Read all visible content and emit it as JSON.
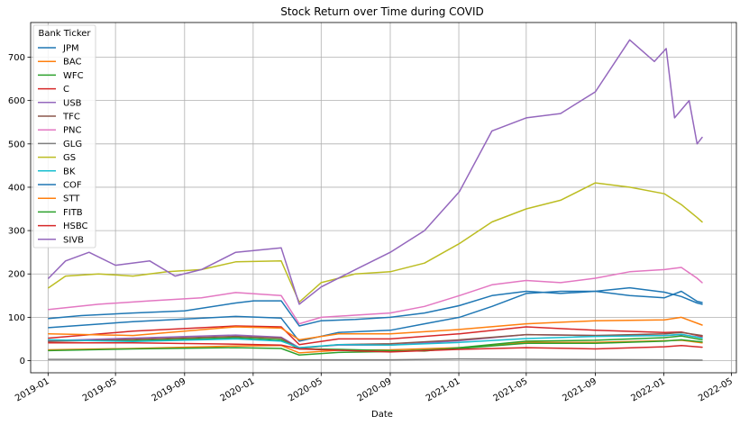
{
  "chart_data": {
    "type": "line",
    "title": "Stock Return over Time during COVID",
    "xlabel": "Date",
    "ylabel": "",
    "ylim": [
      -28,
      780
    ],
    "xlim": [
      "2018-12-01",
      "2022-05-10"
    ],
    "yticks": [
      0,
      100,
      200,
      300,
      400,
      500,
      600,
      700
    ],
    "xticks": [
      "2019-01",
      "2019-05",
      "2019-09",
      "2020-01",
      "2020-05",
      "2020-09",
      "2021-01",
      "2021-05",
      "2021-09",
      "2022-01",
      "2022-05"
    ],
    "grid": true,
    "legend": {
      "title": "Bank Ticker",
      "placement": "upper-left"
    },
    "series": [
      {
        "name": "JPM",
        "color": "#1f77b4",
        "points": [
          [
            "2019-01-02",
            97
          ],
          [
            "2019-03-01",
            104
          ],
          [
            "2019-06-01",
            110
          ],
          [
            "2019-09-01",
            115
          ],
          [
            "2019-12-01",
            133
          ],
          [
            "2020-01-02",
            138
          ],
          [
            "2020-02-20",
            138
          ],
          [
            "2020-03-23",
            80
          ],
          [
            "2020-05-01",
            92
          ],
          [
            "2020-07-01",
            95
          ],
          [
            "2020-09-01",
            100
          ],
          [
            "2020-11-01",
            110
          ],
          [
            "2021-01-02",
            127
          ],
          [
            "2021-03-01",
            150
          ],
          [
            "2021-05-01",
            160
          ],
          [
            "2021-07-01",
            155
          ],
          [
            "2021-09-01",
            160
          ],
          [
            "2021-11-01",
            168
          ],
          [
            "2022-01-02",
            158
          ],
          [
            "2022-02-01",
            148
          ],
          [
            "2022-03-01",
            133
          ],
          [
            "2022-03-10",
            130
          ]
        ]
      },
      {
        "name": "BAC",
        "color": "#ff7f0e",
        "points": [
          [
            "2019-01-02",
            25
          ],
          [
            "2019-06-01",
            28
          ],
          [
            "2019-12-01",
            34
          ],
          [
            "2020-02-20",
            35
          ],
          [
            "2020-03-23",
            18
          ],
          [
            "2020-06-01",
            24
          ],
          [
            "2020-09-01",
            25
          ],
          [
            "2021-01-02",
            30
          ],
          [
            "2021-05-01",
            42
          ],
          [
            "2021-09-01",
            42
          ],
          [
            "2022-01-02",
            46
          ],
          [
            "2022-02-01",
            47
          ],
          [
            "2022-03-10",
            41
          ]
        ]
      },
      {
        "name": "WFC",
        "color": "#2ca02c",
        "points": [
          [
            "2019-01-02",
            47
          ],
          [
            "2019-06-01",
            46
          ],
          [
            "2019-12-01",
            53
          ],
          [
            "2020-02-20",
            48
          ],
          [
            "2020-03-23",
            27
          ],
          [
            "2020-06-01",
            26
          ],
          [
            "2020-09-01",
            23
          ],
          [
            "2020-11-01",
            22
          ],
          [
            "2021-01-02",
            30
          ],
          [
            "2021-05-01",
            45
          ],
          [
            "2021-09-01",
            47
          ],
          [
            "2022-01-02",
            53
          ],
          [
            "2022-02-01",
            57
          ],
          [
            "2022-03-10",
            48
          ]
        ]
      },
      {
        "name": "C",
        "color": "#d62728",
        "points": [
          [
            "2019-01-02",
            52
          ],
          [
            "2019-06-01",
            68
          ],
          [
            "2019-12-01",
            80
          ],
          [
            "2020-02-20",
            78
          ],
          [
            "2020-03-23",
            37
          ],
          [
            "2020-06-01",
            50
          ],
          [
            "2020-09-01",
            50
          ],
          [
            "2021-01-02",
            62
          ],
          [
            "2021-05-01",
            78
          ],
          [
            "2021-09-01",
            70
          ],
          [
            "2022-01-02",
            65
          ],
          [
            "2022-02-01",
            66
          ],
          [
            "2022-03-10",
            56
          ]
        ]
      },
      {
        "name": "USB",
        "color": "#9467bd",
        "points": [
          [
            "2019-01-02",
            46
          ],
          [
            "2019-06-01",
            52
          ],
          [
            "2019-12-01",
            59
          ],
          [
            "2020-02-20",
            54
          ],
          [
            "2020-03-23",
            30
          ],
          [
            "2020-06-01",
            36
          ],
          [
            "2020-09-01",
            36
          ],
          [
            "2021-01-02",
            46
          ],
          [
            "2021-05-01",
            60
          ],
          [
            "2021-09-01",
            58
          ],
          [
            "2022-01-02",
            58
          ],
          [
            "2022-02-01",
            60
          ],
          [
            "2022-03-10",
            53
          ]
        ]
      },
      {
        "name": "TFC",
        "color": "#8c564b",
        "points": [
          [
            "2019-01-02",
            44
          ],
          [
            "2019-06-01",
            49
          ],
          [
            "2019-12-01",
            56
          ],
          [
            "2020-02-20",
            52
          ],
          [
            "2020-03-23",
            28
          ],
          [
            "2020-06-01",
            37
          ],
          [
            "2020-09-01",
            39
          ],
          [
            "2021-01-02",
            48
          ],
          [
            "2021-05-01",
            60
          ],
          [
            "2021-09-01",
            58
          ],
          [
            "2022-01-02",
            62
          ],
          [
            "2022-02-01",
            65
          ],
          [
            "2022-03-10",
            58
          ]
        ]
      },
      {
        "name": "PNC",
        "color": "#e377c2",
        "points": [
          [
            "2019-01-02",
            118
          ],
          [
            "2019-04-01",
            130
          ],
          [
            "2019-07-01",
            138
          ],
          [
            "2019-10-01",
            145
          ],
          [
            "2019-12-01",
            157
          ],
          [
            "2020-02-20",
            150
          ],
          [
            "2020-03-23",
            85
          ],
          [
            "2020-05-01",
            100
          ],
          [
            "2020-07-01",
            105
          ],
          [
            "2020-09-01",
            110
          ],
          [
            "2020-11-01",
            125
          ],
          [
            "2021-01-02",
            150
          ],
          [
            "2021-03-01",
            175
          ],
          [
            "2021-05-01",
            185
          ],
          [
            "2021-07-01",
            180
          ],
          [
            "2021-09-01",
            190
          ],
          [
            "2021-11-01",
            205
          ],
          [
            "2022-01-02",
            210
          ],
          [
            "2022-02-01",
            215
          ],
          [
            "2022-03-01",
            190
          ],
          [
            "2022-03-10",
            180
          ]
        ]
      },
      {
        "name": "GLG",
        "color": "#7f7f7f",
        "points": [
          [
            "2019-01-02",
            3
          ],
          [
            "2019-12-01",
            3
          ],
          [
            "2020-03-23",
            2
          ],
          [
            "2020-09-01",
            2
          ],
          [
            "2021-01-02",
            4
          ],
          [
            "2021-06-01",
            3
          ],
          [
            "2022-01-02",
            2
          ],
          [
            "2022-03-10",
            1
          ]
        ]
      },
      {
        "name": "GS",
        "color": "#bcbd22",
        "points": [
          [
            "2019-01-02",
            168
          ],
          [
            "2019-02-01",
            195
          ],
          [
            "2019-04-01",
            200
          ],
          [
            "2019-06-01",
            195
          ],
          [
            "2019-08-01",
            205
          ],
          [
            "2019-10-01",
            210
          ],
          [
            "2019-12-01",
            228
          ],
          [
            "2020-02-20",
            230
          ],
          [
            "2020-03-23",
            135
          ],
          [
            "2020-05-01",
            180
          ],
          [
            "2020-07-01",
            200
          ],
          [
            "2020-09-01",
            205
          ],
          [
            "2020-11-01",
            225
          ],
          [
            "2021-01-02",
            270
          ],
          [
            "2021-03-01",
            320
          ],
          [
            "2021-05-01",
            350
          ],
          [
            "2021-07-01",
            370
          ],
          [
            "2021-09-01",
            410
          ],
          [
            "2021-11-01",
            400
          ],
          [
            "2022-01-02",
            385
          ],
          [
            "2022-02-01",
            360
          ],
          [
            "2022-03-01",
            330
          ],
          [
            "2022-03-10",
            320
          ]
        ]
      },
      {
        "name": "BK",
        "color": "#17becf",
        "points": [
          [
            "2019-01-02",
            48
          ],
          [
            "2019-06-01",
            44
          ],
          [
            "2019-12-01",
            50
          ],
          [
            "2020-02-20",
            45
          ],
          [
            "2020-03-23",
            30
          ],
          [
            "2020-06-01",
            37
          ],
          [
            "2020-09-01",
            36
          ],
          [
            "2021-01-02",
            42
          ],
          [
            "2021-05-01",
            51
          ],
          [
            "2021-09-01",
            56
          ],
          [
            "2022-01-02",
            58
          ],
          [
            "2022-02-01",
            61
          ],
          [
            "2022-03-10",
            52
          ]
        ]
      },
      {
        "name": "COF",
        "color": "#1f77b4",
        "points": [
          [
            "2019-01-02",
            76
          ],
          [
            "2019-06-01",
            90
          ],
          [
            "2019-12-01",
            102
          ],
          [
            "2020-02-20",
            98
          ],
          [
            "2020-03-23",
            45
          ],
          [
            "2020-06-01",
            65
          ],
          [
            "2020-09-01",
            70
          ],
          [
            "2020-11-01",
            85
          ],
          [
            "2021-01-02",
            100
          ],
          [
            "2021-03-01",
            125
          ],
          [
            "2021-05-01",
            155
          ],
          [
            "2021-07-01",
            160
          ],
          [
            "2021-09-01",
            160
          ],
          [
            "2021-11-01",
            150
          ],
          [
            "2022-01-02",
            145
          ],
          [
            "2022-02-01",
            160
          ],
          [
            "2022-03-01",
            137
          ],
          [
            "2022-03-10",
            134
          ]
        ]
      },
      {
        "name": "STT",
        "color": "#ff7f0e",
        "points": [
          [
            "2019-01-02",
            62
          ],
          [
            "2019-06-01",
            58
          ],
          [
            "2019-12-01",
            78
          ],
          [
            "2020-02-20",
            75
          ],
          [
            "2020-03-23",
            48
          ],
          [
            "2020-06-01",
            62
          ],
          [
            "2020-09-01",
            62
          ],
          [
            "2021-01-02",
            72
          ],
          [
            "2021-05-01",
            85
          ],
          [
            "2021-09-01",
            92
          ],
          [
            "2022-01-02",
            94
          ],
          [
            "2022-02-01",
            100
          ],
          [
            "2022-03-10",
            82
          ]
        ]
      },
      {
        "name": "FITB",
        "color": "#2ca02c",
        "points": [
          [
            "2019-01-02",
            23
          ],
          [
            "2019-06-01",
            27
          ],
          [
            "2019-12-01",
            30
          ],
          [
            "2020-02-20",
            28
          ],
          [
            "2020-03-23",
            13
          ],
          [
            "2020-06-01",
            19
          ],
          [
            "2020-09-01",
            21
          ],
          [
            "2021-01-02",
            28
          ],
          [
            "2021-05-01",
            40
          ],
          [
            "2021-09-01",
            40
          ],
          [
            "2022-01-02",
            45
          ],
          [
            "2022-02-01",
            48
          ],
          [
            "2022-03-10",
            43
          ]
        ]
      },
      {
        "name": "HSBC",
        "color": "#d62728",
        "points": [
          [
            "2019-01-02",
            41
          ],
          [
            "2019-06-01",
            41
          ],
          [
            "2019-12-01",
            38
          ],
          [
            "2020-02-20",
            36
          ],
          [
            "2020-03-23",
            27
          ],
          [
            "2020-06-01",
            24
          ],
          [
            "2020-09-01",
            20
          ],
          [
            "2021-01-02",
            26
          ],
          [
            "2021-05-01",
            30
          ],
          [
            "2021-09-01",
            27
          ],
          [
            "2022-01-02",
            32
          ],
          [
            "2022-02-01",
            35
          ],
          [
            "2022-03-10",
            31
          ]
        ]
      },
      {
        "name": "SIVB",
        "color": "#9467bd",
        "points": [
          [
            "2019-01-02",
            190
          ],
          [
            "2019-02-01",
            230
          ],
          [
            "2019-03-15",
            250
          ],
          [
            "2019-05-01",
            220
          ],
          [
            "2019-07-01",
            230
          ],
          [
            "2019-08-15",
            195
          ],
          [
            "2019-10-01",
            210
          ],
          [
            "2019-12-01",
            250
          ],
          [
            "2020-02-20",
            260
          ],
          [
            "2020-03-23",
            130
          ],
          [
            "2020-05-01",
            170
          ],
          [
            "2020-07-01",
            210
          ],
          [
            "2020-09-01",
            250
          ],
          [
            "2020-11-01",
            300
          ],
          [
            "2021-01-02",
            390
          ],
          [
            "2021-03-01",
            530
          ],
          [
            "2021-05-01",
            560
          ],
          [
            "2021-07-01",
            570
          ],
          [
            "2021-09-01",
            620
          ],
          [
            "2021-11-01",
            740
          ],
          [
            "2021-12-15",
            690
          ],
          [
            "2022-01-05",
            720
          ],
          [
            "2022-01-20",
            560
          ],
          [
            "2022-02-15",
            600
          ],
          [
            "2022-03-01",
            500
          ],
          [
            "2022-03-10",
            515
          ]
        ]
      }
    ]
  }
}
